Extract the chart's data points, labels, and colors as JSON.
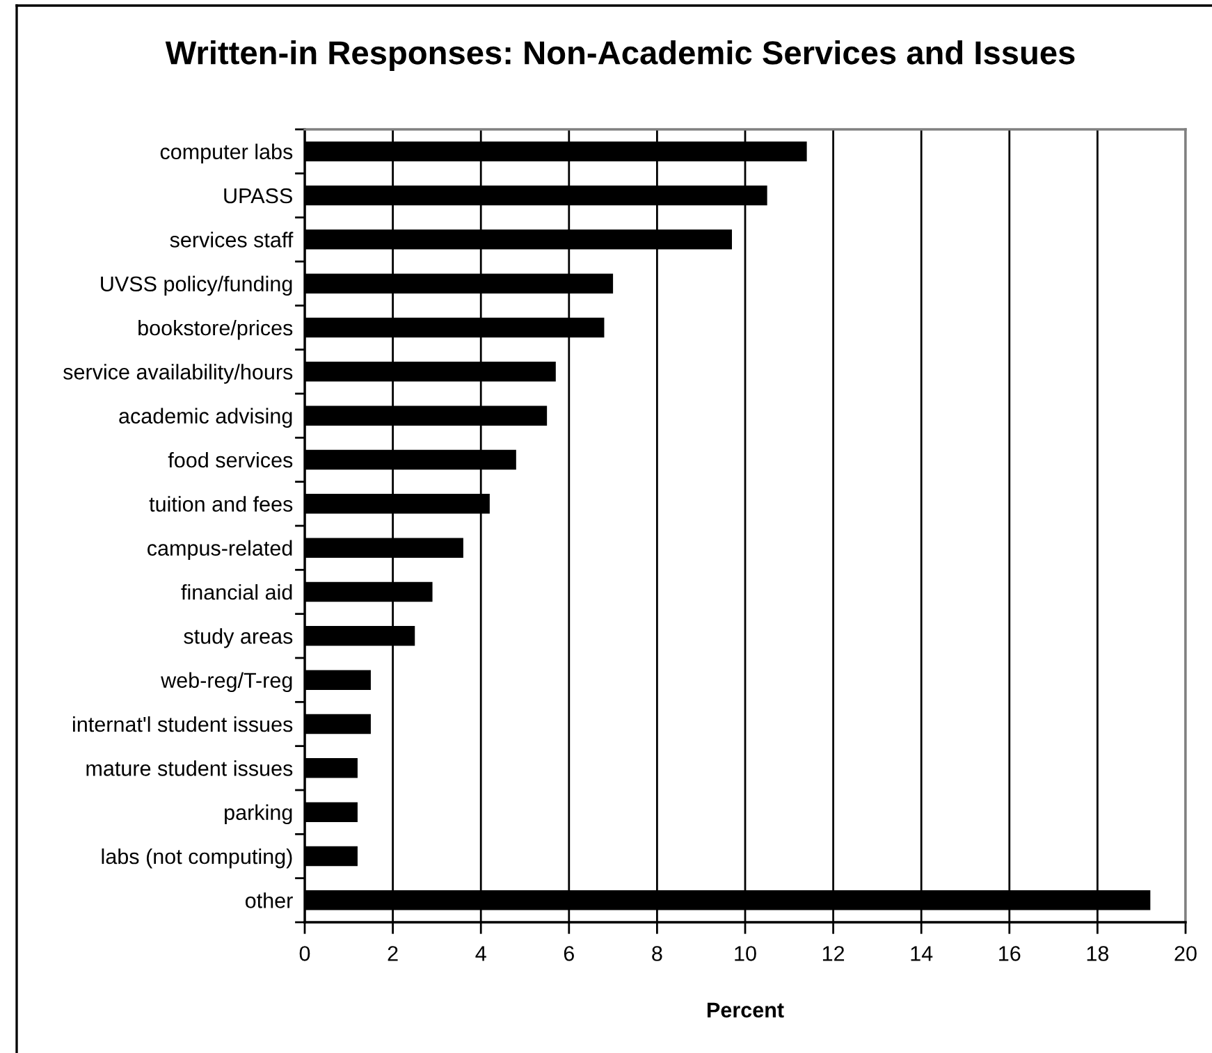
{
  "chart_data": {
    "type": "bar",
    "orientation": "horizontal",
    "title": "Written-in Responses: Non-Academic Services and Issues",
    "xlabel": "Percent",
    "categories": [
      "computer labs",
      "UPASS",
      "services staff",
      "UVSS policy/funding",
      "bookstore/prices",
      "service availability/hours",
      "academic advising",
      "food services",
      "tuition and fees",
      "campus-related",
      "financial aid",
      "study areas",
      "web-reg/T-reg",
      "internat'l student issues",
      "mature student issues",
      "parking",
      "labs (not computing)",
      "other"
    ],
    "values": [
      11.4,
      10.5,
      9.7,
      7.0,
      6.8,
      5.7,
      5.5,
      4.8,
      4.2,
      3.6,
      2.9,
      2.5,
      1.5,
      1.5,
      1.2,
      1.2,
      1.2,
      19.2
    ],
    "color": "#000000",
    "xlim": [
      0,
      20
    ],
    "xticks": [
      0,
      2,
      4,
      6,
      8,
      10,
      12,
      14,
      16,
      18,
      20
    ],
    "grid": "x"
  }
}
